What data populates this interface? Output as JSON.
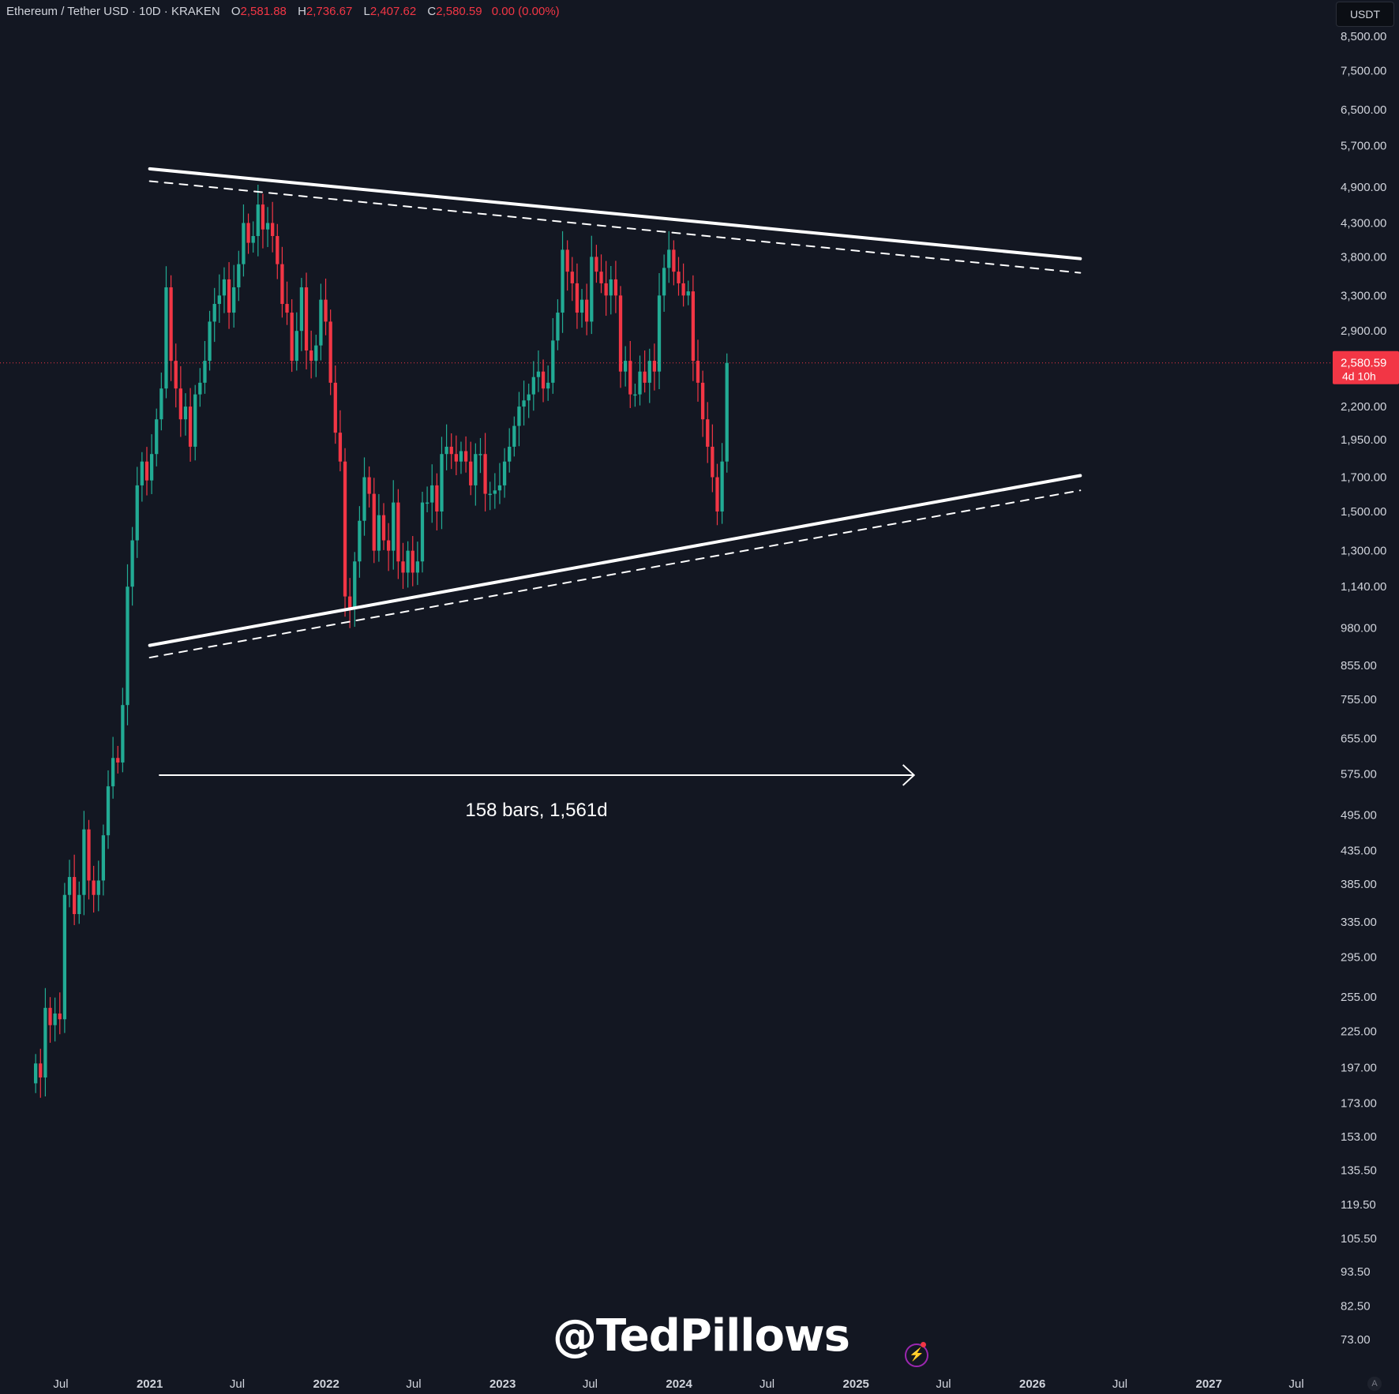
{
  "header": {
    "symbol": "Ethereum / Tether USD · 10D · KRAKEN",
    "open_label": "O",
    "open": "2,581.88",
    "high_label": "H",
    "high": "2,736.67",
    "low_label": "L",
    "low": "2,407.62",
    "close_label": "C",
    "close": "2,580.59",
    "change": "0.00 (0.00%)"
  },
  "unit": "USDT",
  "watermark": "@TedPillows",
  "bolt_icon": "lightning-icon",
  "auto_label": "A",
  "colors": {
    "up": "#22ab94",
    "down": "#f23645",
    "background": "#131722",
    "pattern_lines": "#ffffff"
  },
  "chart_data": {
    "type": "candlestick",
    "scale": "log",
    "grid": false,
    "ylim": [
      66,
      9200
    ],
    "xlim": [
      "2020-05-10",
      "2027-12-01"
    ],
    "y_ticks": [
      "8,500.00",
      "7,500.00",
      "6,500.00",
      "5,700.00",
      "4,900.00",
      "4,300.00",
      "3,800.00",
      "3,300.00",
      "2,900.00",
      "2,200.00",
      "1,950.00",
      "1,700.00",
      "1,500.00",
      "1,300.00",
      "1,140.00",
      "980.00",
      "855.00",
      "755.00",
      "655.00",
      "575.00",
      "495.00",
      "435.00",
      "385.00",
      "335.00",
      "295.00",
      "255.00",
      "225.00",
      "197.00",
      "173.00",
      "153.00",
      "135.50",
      "119.50",
      "105.50",
      "93.50",
      "82.50",
      "73.00"
    ],
    "x_ticks": [
      {
        "date": "2020-07-01",
        "label": "Jul"
      },
      {
        "date": "2021-01-01",
        "label": "2021"
      },
      {
        "date": "2021-07-01",
        "label": "Jul"
      },
      {
        "date": "2022-01-01",
        "label": "2022"
      },
      {
        "date": "2022-07-01",
        "label": "Jul"
      },
      {
        "date": "2023-01-01",
        "label": "2023"
      },
      {
        "date": "2023-07-01",
        "label": "Jul"
      },
      {
        "date": "2024-01-01",
        "label": "2024"
      },
      {
        "date": "2024-07-01",
        "label": "Jul"
      },
      {
        "date": "2025-01-01",
        "label": "2025"
      },
      {
        "date": "2025-07-01",
        "label": "Jul"
      },
      {
        "date": "2026-01-01",
        "label": "2026"
      },
      {
        "date": "2026-07-01",
        "label": "Jul"
      },
      {
        "date": "2027-01-01",
        "label": "2027"
      },
      {
        "date": "2027-07-01",
        "label": "Jul"
      }
    ],
    "price_tag": {
      "value": 2580.59,
      "label": "2,580.59",
      "countdown": "4d 10h"
    },
    "series": [
      {
        "candles_start": "2020-05-10",
        "bar_days": 10,
        "close": [
          200,
          190,
          245,
          230,
          240,
          235,
          370,
          395,
          345,
          370,
          470,
          390,
          370,
          390,
          460,
          550,
          610,
          600,
          740,
          1140,
          1350,
          1650,
          1800,
          1680,
          1850,
          2100,
          2350,
          3400,
          2600,
          2350,
          2100,
          2200,
          1900,
          2300,
          2400,
          2600,
          3000,
          3200,
          3300,
          3500,
          3100,
          3400,
          3700,
          4300,
          4000,
          4100,
          4600,
          4200,
          4300,
          4100,
          3700,
          3200,
          3100,
          2600,
          2900,
          3400,
          2700,
          2600,
          2750,
          3250,
          3000,
          2400,
          2000,
          1800,
          1100,
          1050,
          1250,
          1450,
          1700,
          1600,
          1300,
          1480,
          1350,
          1300,
          1550,
          1250,
          1200,
          1300,
          1200,
          1250,
          1550,
          1550,
          1650,
          1500,
          1850,
          1900,
          1850,
          1800,
          1870,
          1800,
          1650,
          1850,
          1850,
          1600,
          1600,
          1620,
          1650,
          1800,
          1900,
          2050,
          2200,
          2250,
          2300,
          2450,
          2500,
          2350,
          2400,
          2800,
          3100,
          3900,
          3600,
          3450,
          3100,
          3250,
          3000,
          3800,
          3600,
          3450,
          3300,
          3500,
          3300,
          2500,
          2600,
          2300,
          2300,
          2500,
          2400,
          2600,
          2500,
          3300,
          3650,
          3900,
          3600,
          3450,
          3300,
          3350,
          2600,
          2400,
          2100,
          1900,
          1700,
          1500,
          1800,
          2580.59
        ]
      }
    ],
    "trendlines": [
      {
        "name": "upper-resistance",
        "style": "solid",
        "from": {
          "date": "2021-01-01",
          "price": 5240
        },
        "to": {
          "date": "2026-04-10",
          "price": 3775
        }
      },
      {
        "name": "upper-resistance-inner",
        "style": "dashed",
        "from": {
          "date": "2021-01-01",
          "price": 5010
        },
        "to": {
          "date": "2026-04-10",
          "price": 3585
        }
      },
      {
        "name": "lower-support",
        "style": "solid",
        "from": {
          "date": "2021-01-01",
          "price": 920
        },
        "to": {
          "date": "2026-04-10",
          "price": 1710
        }
      },
      {
        "name": "lower-support-inner",
        "style": "dashed",
        "from": {
          "date": "2021-01-01",
          "price": 880
        },
        "to": {
          "date": "2026-04-10",
          "price": 1620
        }
      }
    ],
    "measure": {
      "label": "158 bars, 1,561d",
      "from": "2021-01-20",
      "to": "2025-05-01",
      "price": 573
    }
  }
}
